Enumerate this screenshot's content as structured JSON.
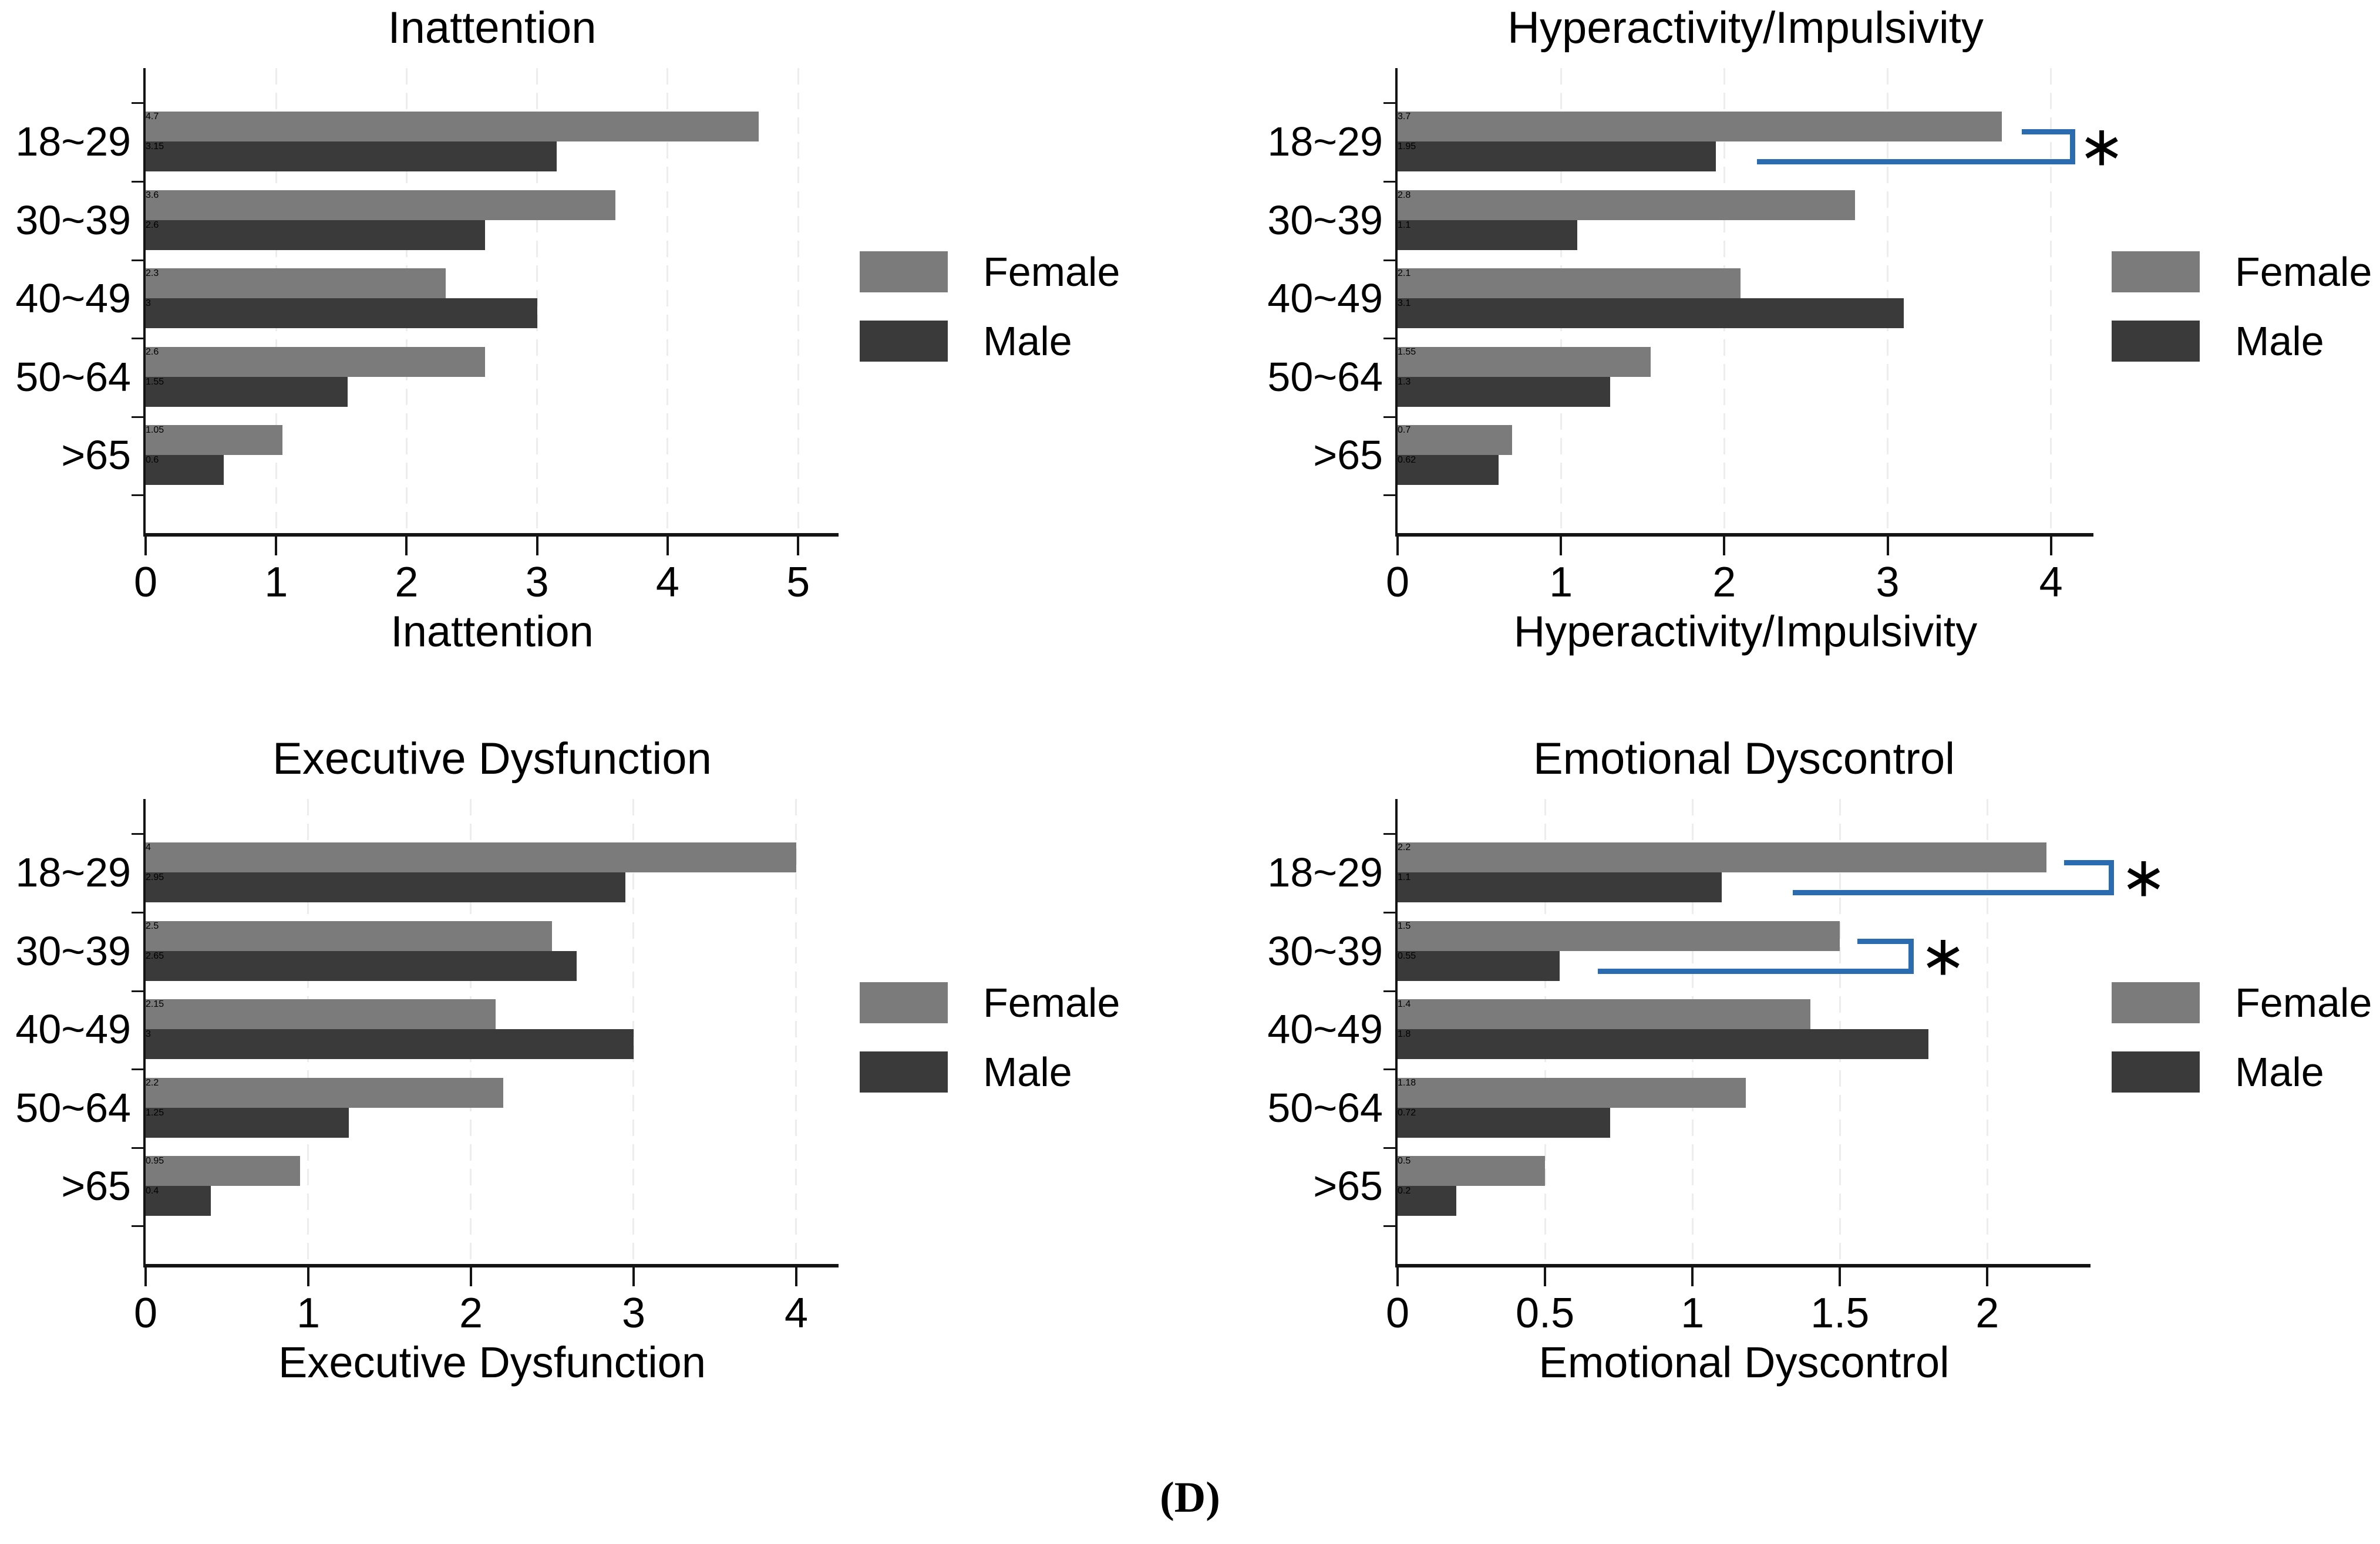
{
  "figure_caption": "(D)",
  "significance_marker": "∗",
  "legend": {
    "female_label": "Female",
    "male_label": "Male"
  },
  "categories": [
    "18~29",
    "30~39",
    "40~49",
    "50~64",
    ">65"
  ],
  "colors": {
    "female_bar": "#7b7b7b",
    "male_bar": "#3a3a3a",
    "significance_bracket": "#2b6cb0",
    "gridline": "#ededed",
    "axis": "#141414",
    "text": "#000000",
    "background": "#ffffff"
  },
  "chart_data": [
    {
      "type": "bar",
      "orientation": "horizontal",
      "title": "Inattention",
      "xlabel": "Inattention",
      "categories": [
        "18~29",
        "30~39",
        "40~49",
        "50~64",
        ">65"
      ],
      "series": [
        {
          "name": "Female",
          "values": [
            4.7,
            3.6,
            2.3,
            2.6,
            1.05
          ]
        },
        {
          "name": "Male",
          "values": [
            3.15,
            2.6,
            3.0,
            1.55,
            0.6
          ]
        }
      ],
      "xlim": [
        0,
        5.31
      ],
      "xticks": [
        0,
        1,
        2,
        3,
        4,
        5
      ],
      "xtick_labels": [
        "0",
        "1",
        "2",
        "3",
        "4",
        "5"
      ],
      "grid": "vertical-dashed",
      "legend_position": "right",
      "significance_brackets": []
    },
    {
      "type": "bar",
      "orientation": "horizontal",
      "title": "Hyperactivity/Impulsivity",
      "xlabel": "Hyperactivity/Impulsivity",
      "categories": [
        "18~29",
        "30~39",
        "40~49",
        "50~64",
        ">65"
      ],
      "series": [
        {
          "name": "Female",
          "values": [
            3.7,
            2.8,
            2.1,
            1.55,
            0.7
          ]
        },
        {
          "name": "Male",
          "values": [
            1.95,
            1.1,
            3.1,
            1.3,
            0.62
          ]
        }
      ],
      "xlim": [
        0,
        4.26
      ],
      "xticks": [
        0,
        1,
        2,
        3,
        4
      ],
      "xtick_labels": [
        "0",
        "1",
        "2",
        "3",
        "4"
      ],
      "grid": "vertical-dashed",
      "legend_position": "right",
      "significance_brackets": [
        {
          "category": "18~29",
          "label": "∗",
          "upper_from": 3.82,
          "lower_from": 2.2,
          "bracket_x": 4.15,
          "star_x": 4.31
        }
      ]
    },
    {
      "type": "bar",
      "orientation": "horizontal",
      "title": "Executive Dysfunction",
      "xlabel": "Executive Dysfunction",
      "categories": [
        "18~29",
        "30~39",
        "40~49",
        "50~64",
        ">65"
      ],
      "series": [
        {
          "name": "Female",
          "values": [
            4.0,
            2.5,
            2.15,
            2.2,
            0.95
          ]
        },
        {
          "name": "Male",
          "values": [
            2.95,
            2.65,
            3.0,
            1.25,
            0.4
          ]
        }
      ],
      "xlim": [
        0,
        4.26
      ],
      "xticks": [
        0,
        1,
        2,
        3,
        4
      ],
      "xtick_labels": [
        "0",
        "1",
        "2",
        "3",
        "4"
      ],
      "grid": "vertical-dashed",
      "legend_position": "right",
      "significance_brackets": []
    },
    {
      "type": "bar",
      "orientation": "horizontal",
      "title": "Emotional Dyscontrol",
      "xlabel": "Emotional Dyscontrol",
      "categories": [
        "18~29",
        "30~39",
        "40~49",
        "50~64",
        ">65"
      ],
      "series": [
        {
          "name": "Female",
          "values": [
            2.2,
            1.5,
            1.4,
            1.18,
            0.5
          ]
        },
        {
          "name": "Male",
          "values": [
            1.1,
            0.55,
            1.8,
            0.72,
            0.2
          ]
        }
      ],
      "xlim": [
        0,
        2.35
      ],
      "xticks": [
        0,
        0.5,
        1,
        1.5,
        2
      ],
      "xtick_labels": [
        "0",
        "0.5",
        "1",
        "1.5",
        "2"
      ],
      "grid": "vertical-dashed",
      "legend_position": "right",
      "significance_brackets": [
        {
          "category": "18~29",
          "label": "∗",
          "upper_from": 2.26,
          "lower_from": 1.34,
          "bracket_x": 2.43,
          "star_x": 2.53
        },
        {
          "category": "30~39",
          "label": "∗",
          "upper_from": 1.56,
          "lower_from": 0.68,
          "bracket_x": 1.75,
          "star_x": 1.85
        }
      ]
    }
  ]
}
